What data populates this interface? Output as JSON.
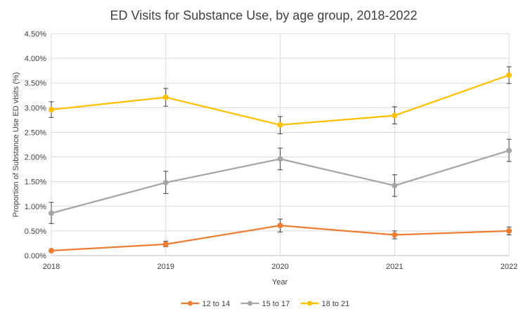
{
  "chart_data": {
    "type": "line",
    "title": "ED Visits for Substance Use, by age group, 2018-2022",
    "xlabel": "Year",
    "ylabel": "Proportion of Substance Use ED visits (%)",
    "x": [
      "2018",
      "2019",
      "2020",
      "2021",
      "2022"
    ],
    "ylim": [
      0,
      4.5
    ],
    "yticks": [
      "0.00%",
      "0.50%",
      "1.00%",
      "1.50%",
      "2.00%",
      "2.50%",
      "3.00%",
      "3.50%",
      "4.00%",
      "4.50%"
    ],
    "grid": true,
    "legend_position": "bottom",
    "series": [
      {
        "name": "12 to 14",
        "color": "#ED7D31",
        "values": [
          0.1,
          0.23,
          0.61,
          0.42,
          0.5
        ],
        "err_low": [
          0.1,
          0.18,
          0.48,
          0.34,
          0.42
        ],
        "err_high": [
          0.1,
          0.29,
          0.74,
          0.5,
          0.58
        ]
      },
      {
        "name": "15 to 17",
        "color": "#A5A5A5",
        "values": [
          0.86,
          1.48,
          1.96,
          1.42,
          2.13
        ],
        "err_low": [
          0.65,
          1.26,
          1.74,
          1.2,
          1.91
        ],
        "err_high": [
          1.08,
          1.71,
          2.18,
          1.64,
          2.36
        ]
      },
      {
        "name": "18 to 21",
        "color": "#FFC000",
        "values": [
          2.96,
          3.21,
          2.65,
          2.84,
          3.66
        ],
        "err_low": [
          2.8,
          3.03,
          2.47,
          2.67,
          3.49
        ],
        "err_high": [
          3.12,
          3.39,
          2.82,
          3.02,
          3.83
        ]
      }
    ]
  }
}
